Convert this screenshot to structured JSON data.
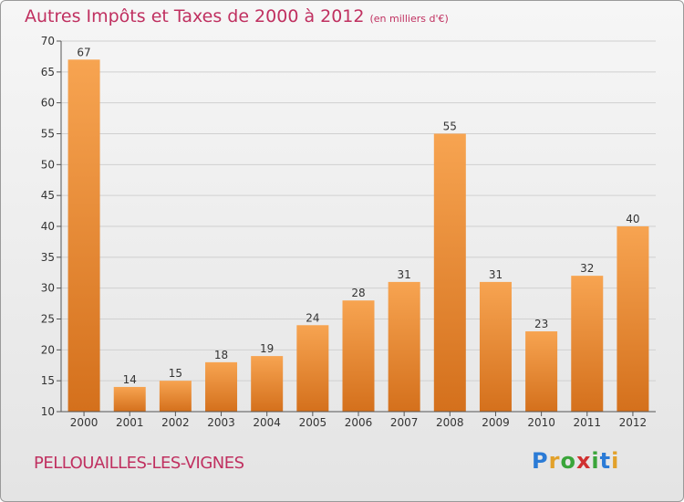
{
  "header": {
    "title": "Autres Impôts et Taxes de 2000 à 2012",
    "unit": "(en milliers d'€)"
  },
  "footer": {
    "town": "PELLOUAILLES-LES-VIGNES"
  },
  "logo": {
    "letters": [
      "P",
      "r",
      "o",
      "x",
      "i",
      "t",
      "i"
    ],
    "colors": [
      "#2b7bd6",
      "#e2a12a",
      "#3aa53a",
      "#d03030",
      "#3aa53a",
      "#2b7bd6",
      "#e2a12a"
    ]
  },
  "chart_data": {
    "type": "bar",
    "categories": [
      "2000",
      "2001",
      "2002",
      "2003",
      "2004",
      "2005",
      "2006",
      "2007",
      "2008",
      "2009",
      "2010",
      "2011",
      "2012"
    ],
    "values": [
      67,
      14,
      15,
      18,
      19,
      24,
      28,
      31,
      55,
      31,
      23,
      32,
      40
    ],
    "ylim": [
      10,
      70
    ],
    "yticks": [
      10,
      15,
      20,
      25,
      30,
      35,
      40,
      45,
      50,
      55,
      60,
      65,
      70
    ],
    "grid": true,
    "bar_color": "#e8842a"
  }
}
